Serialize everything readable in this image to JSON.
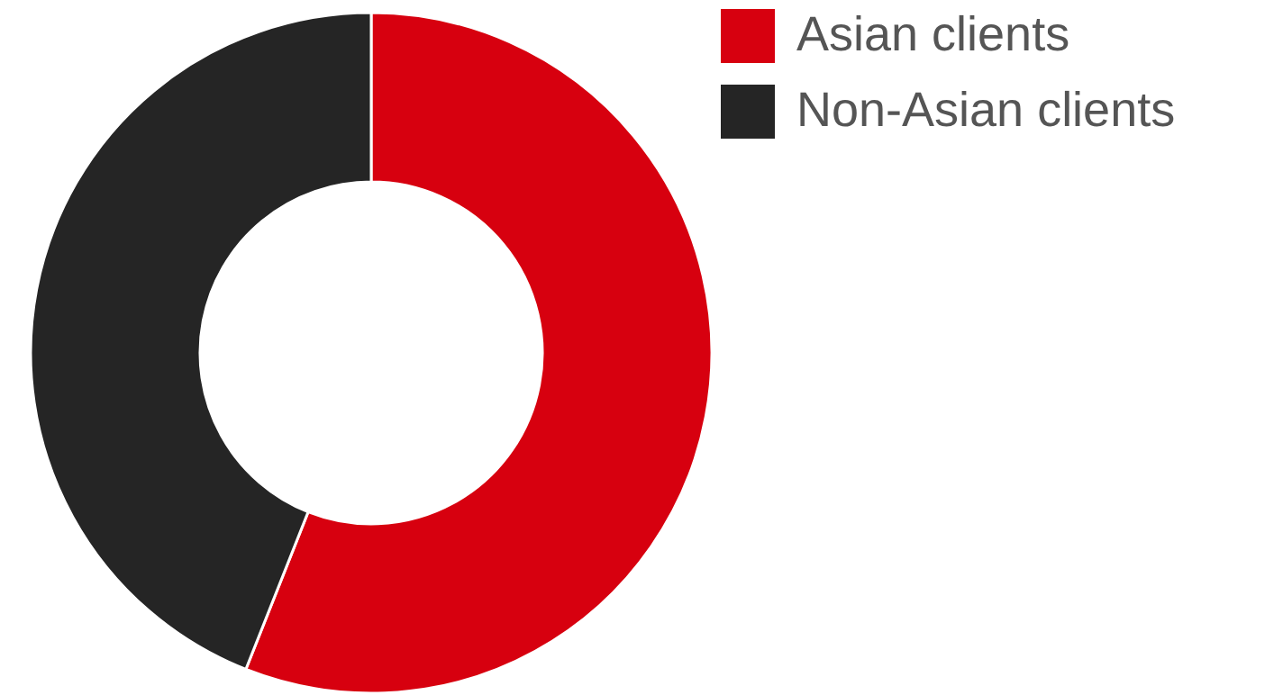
{
  "chart_data": {
    "type": "donut",
    "categories": [
      "Asian clients",
      "Non-Asian clients"
    ],
    "values": [
      56,
      44
    ],
    "colors": [
      "#d7000f",
      "#252525"
    ],
    "legend": "top right"
  }
}
